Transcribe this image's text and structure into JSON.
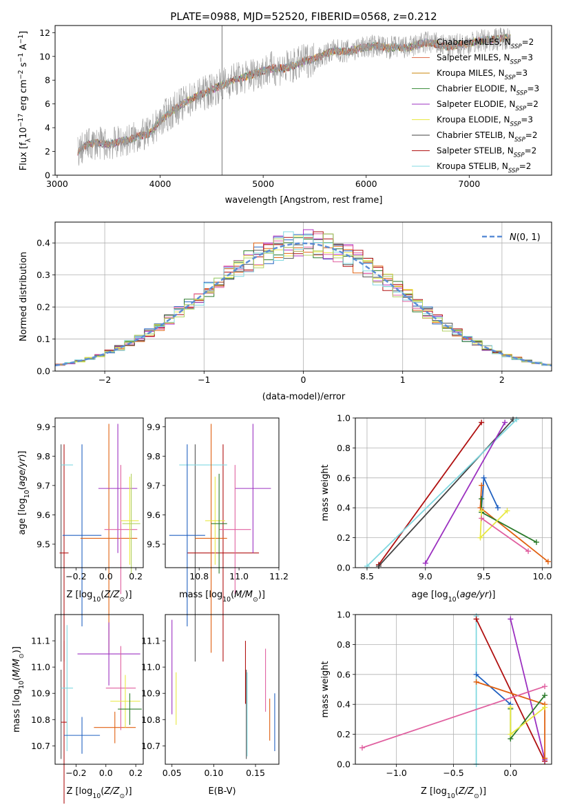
{
  "title": "PLATE=0988, MJD=52520, FIBERID=0568, z=0.212",
  "colors": {
    "model_series": [
      "#c8860a",
      "#3f8f3f",
      "#9b30c0",
      "#e8e840",
      "#404040",
      "#b01010",
      "#80d8e0"
    ],
    "chabrier_miles": "#999999",
    "salpeter_miles": "#e07050",
    "hist": [
      "#2060c0",
      "#e06010",
      "#2a7a2a",
      "#b030c0",
      "#e8e840",
      "#e060a0",
      "#b01010",
      "#555555",
      "#80d8e0",
      "#b0d060"
    ]
  },
  "chart_data": [
    {
      "type": "line",
      "id": "spectrum",
      "xlabel": "wavelength [Angstrom, rest frame]",
      "ylabel": "Flux [f_λ 10^-17 erg cm^-2 s^-1 A^-1]",
      "xlim": [
        2980,
        7800
      ],
      "ylim": [
        0,
        12.6
      ],
      "xticks": [
        3000,
        4000,
        5000,
        6000,
        7000
      ],
      "yticks": [
        0,
        2,
        4,
        6,
        8,
        10,
        12
      ],
      "grid": false,
      "legend_position": "right",
      "spectrum_curve": {
        "x": [
          3200,
          3300,
          3400,
          3500,
          3600,
          3700,
          3800,
          3900,
          4000,
          4100,
          4200,
          4300,
          4400,
          4500,
          4600,
          4700,
          4800,
          4900,
          5000,
          5100,
          5200,
          5300,
          5400,
          5500,
          5600,
          5700,
          5800,
          5900,
          6000,
          6100,
          6200,
          6300,
          6400,
          6500,
          6600,
          6700,
          6800,
          6900,
          7000,
          7100,
          7200,
          7300,
          7400
        ],
        "y": [
          2.0,
          2.6,
          2.7,
          2.6,
          2.8,
          3.0,
          3.3,
          3.5,
          4.6,
          5.3,
          5.9,
          6.4,
          6.8,
          7.2,
          7.6,
          8.0,
          8.2,
          8.5,
          8.8,
          9.0,
          9.0,
          9.2,
          9.6,
          9.8,
          10.2,
          10.5,
          10.4,
          10.6,
          10.8,
          10.9,
          10.7,
          10.8,
          10.7,
          11.0,
          11.2,
          11.0,
          10.8,
          11.0,
          11.1,
          11.3,
          11.4,
          11.5,
          11.6
        ]
      },
      "vertical_lines": [
        4600
      ],
      "legend": [
        "Chabrier MILES, N_SSP=2",
        "Salpeter MILES, N_SSP=3",
        "Kroupa MILES, N_SSP=3",
        "Chabrier ELODIE, N_SSP=3",
        "Salpeter ELODIE, N_SSP=2",
        "Kroupa ELODIE, N_SSP=3",
        "Chabrier STELIB, N_SSP=2",
        "Salpeter STELIB, N_SSP=2",
        "Kroupa STELIB, N_SSP=2"
      ]
    },
    {
      "type": "bar",
      "id": "residual_hist",
      "xlabel": "(data-model)/error",
      "ylabel": "Normed distribution",
      "xlim": [
        -2.5,
        2.5
      ],
      "ylim": [
        0,
        0.465
      ],
      "xticks": [
        -2,
        -1,
        0,
        1,
        2
      ],
      "yticks": [
        0.0,
        0.1,
        0.2,
        0.3,
        0.4
      ],
      "grid": true,
      "legend_position": "top-right",
      "gaussian_label": "N(0,1)",
      "bin_width": 0.1
    },
    {
      "type": "scatter",
      "id": "age_vs_Z",
      "xlabel": "Z [log10(Z/Z_sun)]",
      "ylabel": "age  [log10(age/yr)]",
      "xlim": [
        -0.34,
        0.25
      ],
      "ylim": [
        9.42,
        9.93
      ],
      "xticks": [
        -0.2,
        0.0,
        0.2
      ],
      "yticks": [
        9.5,
        9.6,
        9.7,
        9.8,
        9.9
      ],
      "grid": false,
      "points": [
        {
          "x": -0.3,
          "y": 9.47,
          "xerr": 0.0,
          "yerr": 0.37,
          "c": "#555555"
        },
        {
          "x": -0.28,
          "y": 9.47,
          "xerr": 0.03,
          "yerr": 0.37,
          "c": "#b01010"
        },
        {
          "x": -0.26,
          "y": 9.77,
          "xerr": 0.04,
          "yerr": 0.0,
          "c": "#80d8e0"
        },
        {
          "x": -0.16,
          "y": 9.53,
          "xerr": 0.13,
          "yerr": 0.31,
          "c": "#2060c0"
        },
        {
          "x": 0.02,
          "y": 9.52,
          "xerr": 0.19,
          "yerr": 0.39,
          "c": "#e06010"
        },
        {
          "x": 0.08,
          "y": 9.69,
          "xerr": 0.13,
          "yerr": 0.22,
          "c": "#9b30c0"
        },
        {
          "x": 0.1,
          "y": 9.55,
          "xerr": 0.11,
          "yerr": 0.22,
          "c": "#e060a0"
        },
        {
          "x": 0.16,
          "y": 9.58,
          "xerr": 0.06,
          "yerr": 0.15,
          "c": "#e8e840"
        },
        {
          "x": 0.17,
          "y": 9.57,
          "xerr": 0.06,
          "yerr": 0.17,
          "c": "#b0d060"
        }
      ]
    },
    {
      "type": "scatter",
      "id": "age_vs_mass",
      "xlabel": "mass [log10(M/M_sun)]",
      "ylabel": "",
      "xlim": [
        10.63,
        11.2
      ],
      "ylim": [
        9.42,
        9.93
      ],
      "xticks": [
        10.8,
        11.0,
        11.2
      ],
      "yticks": [
        9.5,
        9.6,
        9.7,
        9.8,
        9.9
      ],
      "grid": false,
      "points": [
        {
          "x": 10.78,
          "y": 9.47,
          "xerr": 0.0,
          "yerr": 0.37,
          "c": "#555555"
        },
        {
          "x": 10.92,
          "y": 9.47,
          "xerr": 0.18,
          "yerr": 0.37,
          "c": "#b01010"
        },
        {
          "x": 10.82,
          "y": 9.77,
          "xerr": 0.12,
          "yerr": 0.0,
          "c": "#80d8e0"
        },
        {
          "x": 10.74,
          "y": 9.53,
          "xerr": 0.09,
          "yerr": 0.31,
          "c": "#2060c0"
        },
        {
          "x": 10.86,
          "y": 9.52,
          "xerr": 0.08,
          "yerr": 0.39,
          "c": "#e06010"
        },
        {
          "x": 11.07,
          "y": 9.69,
          "xerr": 0.09,
          "yerr": 0.22,
          "c": "#9b30c0"
        },
        {
          "x": 10.98,
          "y": 9.55,
          "xerr": 0.08,
          "yerr": 0.22,
          "c": "#e060a0"
        },
        {
          "x": 10.88,
          "y": 9.58,
          "xerr": 0.05,
          "yerr": 0.15,
          "c": "#e8e840"
        },
        {
          "x": 10.9,
          "y": 9.57,
          "xerr": 0.04,
          "yerr": 0.17,
          "c": "#2a7a2a"
        }
      ]
    },
    {
      "type": "line",
      "id": "massweight_vs_age",
      "xlabel": "age  [log10(age/yr)]",
      "ylabel": "mass weight",
      "xlim": [
        8.4,
        10.08
      ],
      "ylim": [
        0,
        1.0
      ],
      "xticks": [
        8.5,
        9.0,
        9.5,
        10.0
      ],
      "yticks": [
        0.0,
        0.2,
        0.4,
        0.6,
        0.8,
        1.0
      ],
      "grid": true,
      "series": [
        {
          "c": "#b01010",
          "x": [
            8.6,
            9.48
          ],
          "y": [
            0.02,
            0.97
          ]
        },
        {
          "c": "#404040",
          "x": [
            8.6,
            9.75
          ],
          "y": [
            0.01,
            0.99
          ]
        },
        {
          "c": "#80d8e0",
          "x": [
            8.5,
            9.78
          ],
          "y": [
            0.01,
            0.99
          ]
        },
        {
          "c": "#9b30c0",
          "x": [
            9.0,
            9.68
          ],
          "y": [
            0.03,
            0.97
          ]
        },
        {
          "c": "#2060c0",
          "x": [
            9.48,
            9.5,
            9.62
          ],
          "y": [
            0.4,
            0.6,
            0.4
          ]
        },
        {
          "c": "#e06010",
          "x": [
            9.48,
            9.47,
            10.05
          ],
          "y": [
            0.55,
            0.4,
            0.04
          ]
        },
        {
          "c": "#2a7a2a",
          "x": [
            9.48,
            9.48,
            9.95
          ],
          "y": [
            0.46,
            0.37,
            0.17
          ]
        },
        {
          "c": "#e8e840",
          "x": [
            9.48,
            9.47,
            9.7
          ],
          "y": [
            0.38,
            0.2,
            0.38
          ]
        },
        {
          "c": "#e060a0",
          "x": [
            9.48,
            9.88
          ],
          "y": [
            0.33,
            0.11
          ]
        }
      ]
    },
    {
      "type": "scatter",
      "id": "mass_vs_Z",
      "xlabel": "Z [log10(Z/Z_sun)]",
      "ylabel": "mass [log10(M/M_sun)]",
      "xlim": [
        -0.34,
        0.25
      ],
      "ylim": [
        10.63,
        11.2
      ],
      "xticks": [
        -0.2,
        0.0,
        0.2
      ],
      "yticks": [
        10.7,
        10.8,
        10.9,
        11.0,
        11.1
      ],
      "grid": false,
      "points": [
        {
          "x": -0.3,
          "y": 10.82,
          "xerr": 0.0,
          "yerr": 0.17,
          "c": "#555555"
        },
        {
          "x": -0.28,
          "y": 10.79,
          "xerr": 0.02,
          "yerr": 0.31,
          "c": "#b01010"
        },
        {
          "x": -0.26,
          "y": 10.92,
          "xerr": 0.04,
          "yerr": 0.24,
          "c": "#80d8e0"
        },
        {
          "x": -0.16,
          "y": 10.74,
          "xerr": 0.12,
          "yerr": 0.07,
          "c": "#2060c0"
        },
        {
          "x": 0.06,
          "y": 10.77,
          "xerr": 0.14,
          "yerr": 0.06,
          "c": "#e06010"
        },
        {
          "x": 0.02,
          "y": 11.05,
          "xerr": 0.21,
          "yerr": 0.12,
          "c": "#9b30c0"
        },
        {
          "x": 0.1,
          "y": 10.92,
          "xerr": 0.1,
          "yerr": 0.16,
          "c": "#e060a0"
        },
        {
          "x": 0.13,
          "y": 10.87,
          "xerr": 0.1,
          "yerr": 0.1,
          "c": "#e8e840"
        },
        {
          "x": 0.16,
          "y": 10.84,
          "xerr": 0.08,
          "yerr": 0.06,
          "c": "#2a7a2a"
        }
      ]
    },
    {
      "type": "scatter",
      "id": "mass_vs_ebv",
      "xlabel": "E(B-V)",
      "ylabel": "",
      "xlim": [
        0.042,
        0.178
      ],
      "ylim": [
        10.63,
        11.2
      ],
      "xticks": [
        0.05,
        0.1,
        0.15
      ],
      "yticks": [
        10.7,
        10.8,
        10.9,
        11.0,
        11.1
      ],
      "grid": false,
      "points": [
        {
          "x": 0.05,
          "y": 11.0,
          "xerr": 0.0,
          "yerr": 0.18,
          "c": "#9b30c0"
        },
        {
          "x": 0.055,
          "y": 10.88,
          "xerr": 0.0,
          "yerr": 0.1,
          "c": "#e8e840"
        },
        {
          "x": 0.138,
          "y": 10.98,
          "xerr": 0.0,
          "yerr": 0.12,
          "c": "#b01010"
        },
        {
          "x": 0.139,
          "y": 10.82,
          "xerr": 0.0,
          "yerr": 0.17,
          "c": "#555555"
        },
        {
          "x": 0.14,
          "y": 10.82,
          "xerr": 0.0,
          "yerr": 0.16,
          "c": "#80d8e0"
        },
        {
          "x": 0.162,
          "y": 10.95,
          "xerr": 0.0,
          "yerr": 0.12,
          "c": "#e060a0"
        },
        {
          "x": 0.167,
          "y": 10.8,
          "xerr": 0.0,
          "yerr": 0.08,
          "c": "#e06010"
        },
        {
          "x": 0.173,
          "y": 10.79,
          "xerr": 0.0,
          "yerr": 0.11,
          "c": "#2060c0"
        }
      ]
    },
    {
      "type": "line",
      "id": "massweight_vs_Z",
      "xlabel": "Z [log10(Z/Z_sun)]",
      "ylabel": "mass weight",
      "xlim": [
        -1.36,
        0.36
      ],
      "ylim": [
        0,
        1.0
      ],
      "xticks": [
        -1.0,
        -0.5,
        0.0
      ],
      "yticks": [
        0.0,
        0.2,
        0.4,
        0.6,
        0.8,
        1.0
      ],
      "grid": true,
      "series": [
        {
          "c": "#80d8e0",
          "x": [
            -0.3,
            -0.3
          ],
          "y": [
            0.0,
            0.99
          ]
        },
        {
          "c": "#b01010",
          "x": [
            -0.3,
            0.3
          ],
          "y": [
            0.97,
            0.02
          ]
        },
        {
          "c": "#9b30c0",
          "x": [
            0.0,
            0.3
          ],
          "y": [
            0.97,
            0.03
          ]
        },
        {
          "c": "#2060c0",
          "x": [
            -0.3,
            0.0
          ],
          "y": [
            0.6,
            0.4
          ]
        },
        {
          "c": "#e06010",
          "x": [
            -0.3,
            0.3,
            0.3
          ],
          "y": [
            0.55,
            0.4,
            0.04
          ]
        },
        {
          "c": "#2a7a2a",
          "x": [
            0.0,
            0.0,
            0.3
          ],
          "y": [
            0.37,
            0.17,
            0.46
          ]
        },
        {
          "c": "#e8e840",
          "x": [
            0.0,
            0.0,
            0.3
          ],
          "y": [
            0.38,
            0.2,
            0.38
          ]
        },
        {
          "c": "#e060a0",
          "x": [
            -1.3,
            0.3
          ],
          "y": [
            0.11,
            0.52
          ]
        }
      ]
    }
  ]
}
